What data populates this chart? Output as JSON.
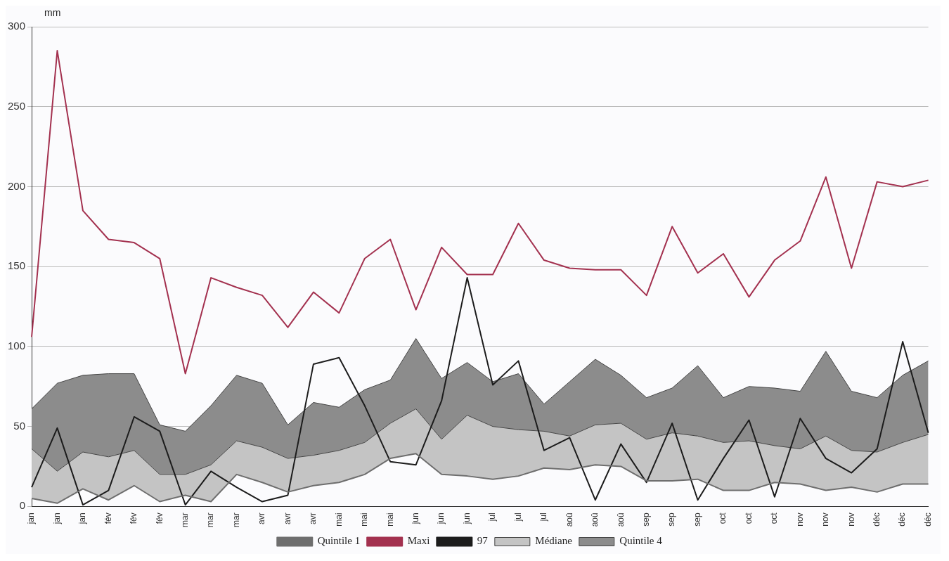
{
  "chart_data": {
    "type": "line",
    "ylabel": "mm",
    "categories": [
      "jan",
      "jan",
      "jan",
      "fév",
      "fév",
      "fév",
      "mar",
      "mar",
      "mar",
      "avr",
      "avr",
      "avr",
      "mai",
      "mai",
      "mai",
      "jun",
      "jun",
      "jun",
      "jul",
      "jul",
      "jul",
      "aoû",
      "aoû",
      "aoû",
      "sep",
      "sep",
      "sep",
      "oct",
      "oct",
      "oct",
      "nov",
      "nov",
      "nov",
      "déc",
      "déc",
      "déc"
    ],
    "series": [
      {
        "name": "Quintile 1",
        "type": "line",
        "color": "#6e6e6e",
        "values": [
          5,
          2,
          11,
          4,
          13,
          3,
          7,
          3,
          20,
          15,
          9,
          13,
          15,
          20,
          30,
          33,
          20,
          19,
          17,
          19,
          24,
          23,
          26,
          25,
          16,
          16,
          17,
          10,
          10,
          15,
          14,
          10,
          12,
          9,
          14,
          14
        ]
      },
      {
        "name": "Médiane",
        "type": "area",
        "color": "#c4c4c4",
        "values": [
          36,
          22,
          34,
          31,
          35,
          20,
          20,
          26,
          41,
          37,
          30,
          32,
          35,
          40,
          52,
          61,
          42,
          57,
          50,
          48,
          47,
          44,
          51,
          52,
          42,
          46,
          44,
          40,
          41,
          38,
          36,
          44,
          35,
          34,
          40,
          45
        ]
      },
      {
        "name": "Quintile 4",
        "type": "area",
        "color": "#8c8c8c",
        "values": [
          61,
          77,
          82,
          83,
          83,
          51,
          47,
          63,
          82,
          77,
          51,
          65,
          62,
          73,
          79,
          105,
          80,
          90,
          78,
          83,
          64,
          78,
          92,
          82,
          68,
          74,
          88,
          68,
          75,
          74,
          72,
          97,
          72,
          68,
          82,
          91
        ]
      },
      {
        "name": "Maxi",
        "type": "line",
        "color": "#a3314f",
        "values": [
          106,
          285,
          185,
          167,
          165,
          155,
          83,
          143,
          137,
          132,
          112,
          134,
          121,
          155,
          167,
          123,
          162,
          145,
          145,
          177,
          154,
          149,
          148,
          148,
          132,
          175,
          146,
          158,
          131,
          154,
          166,
          206,
          149,
          203,
          200,
          204
        ]
      },
      {
        "name": "97",
        "type": "line",
        "color": "#1c1c1c",
        "values": [
          12,
          49,
          1,
          10,
          56,
          47,
          1,
          22,
          12,
          3,
          7,
          89,
          93,
          63,
          28,
          26,
          66,
          143,
          76,
          91,
          35,
          43,
          4,
          39,
          15,
          52,
          4,
          30,
          54,
          6,
          55,
          30,
          21,
          36,
          103,
          46
        ]
      }
    ],
    "ylim": [
      0,
      300
    ],
    "yticks": [
      0,
      50,
      100,
      150,
      200,
      250,
      300
    ],
    "grid": "y",
    "legend": "bottom",
    "marker": "none",
    "line_style": "solid"
  }
}
